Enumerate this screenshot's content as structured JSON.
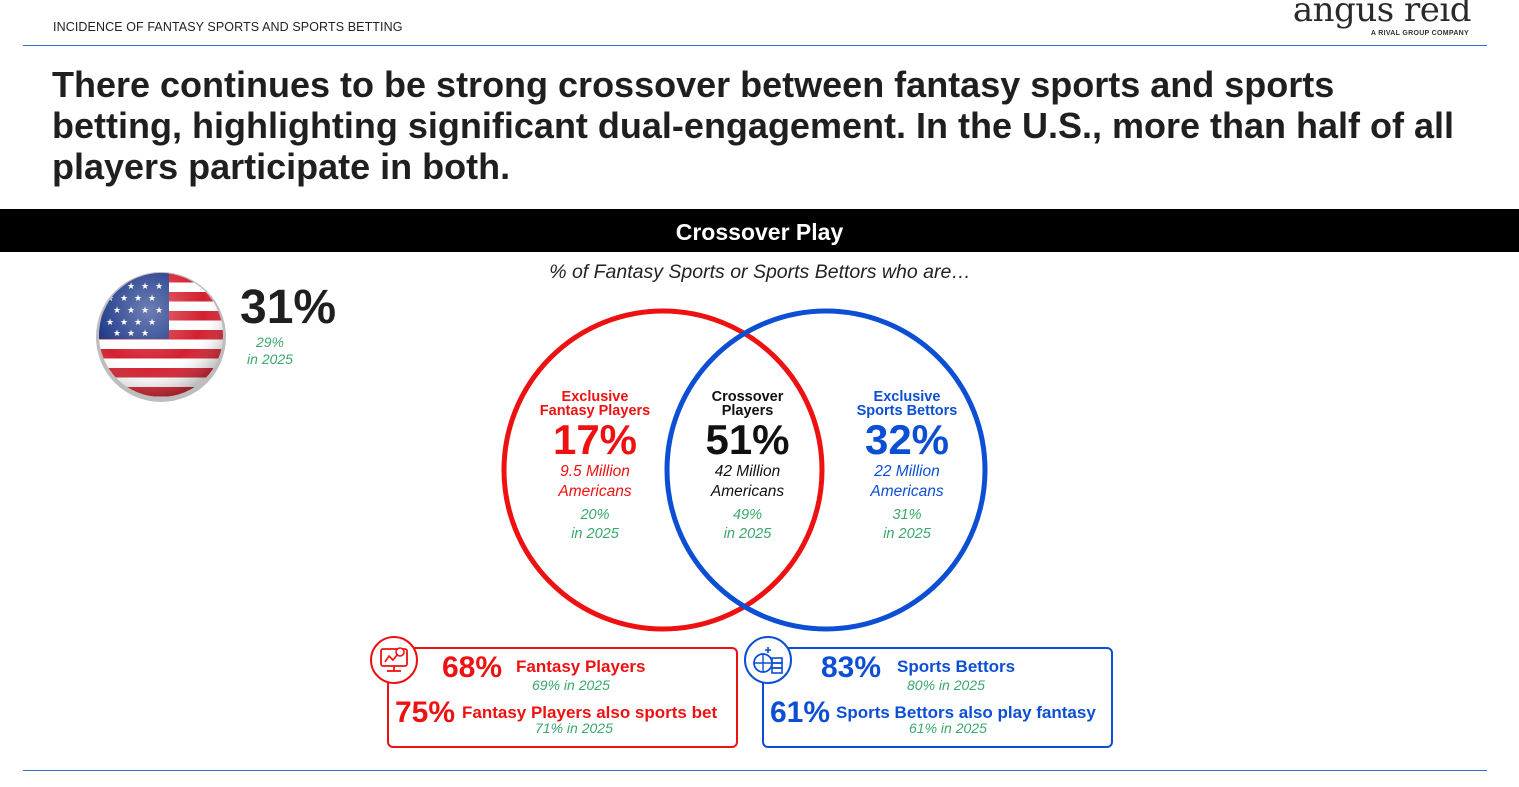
{
  "header": {
    "kicker": "INCIDENCE OF FANTASY SPORTS AND SPORTS BETTING",
    "logo_name": "angus reid",
    "logo_tagline": "A RIVAL GROUP COMPANY"
  },
  "headline": "There continues to be strong crossover between fantasy sports and sports betting, highlighting significant dual-engagement. In the U.S., more than half of all players participate in both.",
  "banner": {
    "title": "Crossover Play"
  },
  "subtitle": "% of Fantasy Sports or Sports Bettors who are…",
  "us_stat": {
    "icon": "us-flag-icon",
    "value": "31%",
    "prev_value": "29%",
    "prev_label": "in 2025"
  },
  "venn": {
    "exclusive_fantasy": {
      "label_line1": "Exclusive",
      "label_line2": "Fantasy Players",
      "value": "17%",
      "count_line1": "9.5 Million",
      "count_line2": "Americans",
      "prev_value": "20%",
      "prev_label": "in 2025"
    },
    "crossover": {
      "label_line1": "Crossover",
      "label_line2": "Players",
      "value": "51%",
      "count_line1": "42 Million",
      "count_line2": "Americans",
      "prev_value": "49%",
      "prev_label": "in 2025"
    },
    "exclusive_bettors": {
      "label_line1": "Exclusive",
      "label_line2": "Sports Bettors",
      "value": "32%",
      "count_line1": "22 Million",
      "count_line2": "Americans",
      "prev_value": "31%",
      "prev_label": "in 2025"
    }
  },
  "fantasy_box": {
    "icon": "fantasy-screen-icon",
    "stat1": {
      "value": "68%",
      "label": "Fantasy Players",
      "prev_value": "69%",
      "prev_label": "in 2025"
    },
    "stat2": {
      "value": "75%",
      "label": "Fantasy Players also sports bet",
      "prev_value": "71%",
      "prev_label": "in 2025"
    }
  },
  "bettors_box": {
    "icon": "sports-betting-icon",
    "stat1": {
      "value": "83%",
      "label": "Sports Bettors",
      "prev_value": "80%",
      "prev_label": "in 2025"
    },
    "stat2": {
      "value": "61%",
      "label": "Sports Bettors also play fantasy",
      "prev_value": "61%",
      "prev_label": "in 2025"
    }
  },
  "colors": {
    "fantasy": "#ee1111",
    "bettors": "#0c4fd4",
    "prior_year": "#3aa86a",
    "rule": "#2f6fcf"
  }
}
